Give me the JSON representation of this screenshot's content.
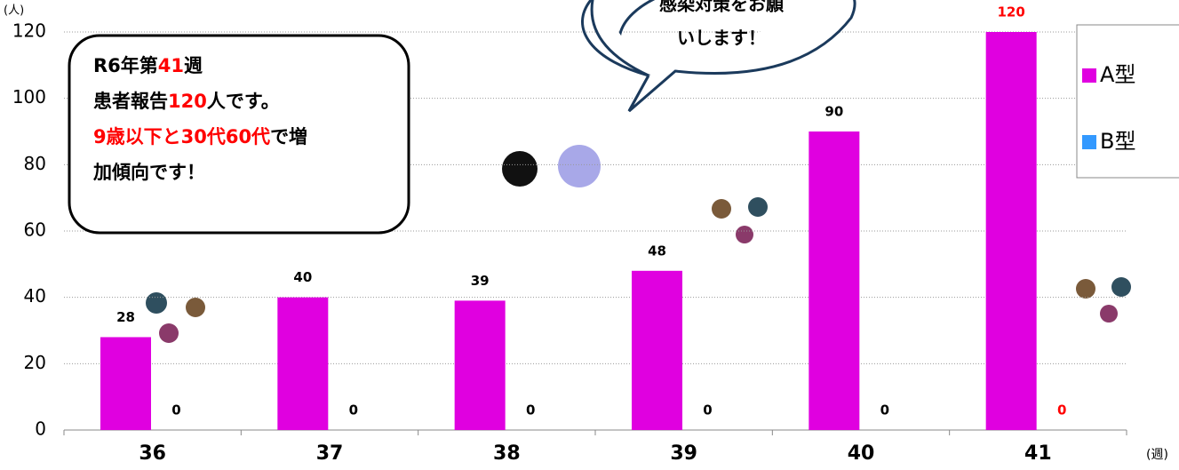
{
  "chart_data": {
    "type": "bar",
    "y_unit": "(人)",
    "x_unit": "(週)",
    "categories": [
      "36",
      "37",
      "38",
      "39",
      "40",
      "41"
    ],
    "series": [
      {
        "name": "A型",
        "color": "#e000e0",
        "values": [
          28,
          40,
          39,
          48,
          90,
          120
        ],
        "label_colors": [
          "#000000",
          "#000000",
          "#000000",
          "#000000",
          "#000000",
          "#ff0000"
        ]
      },
      {
        "name": "B型",
        "color": "#3399ff",
        "values": [
          0,
          0,
          0,
          0,
          0,
          0
        ],
        "label_colors": [
          "#000000",
          "#000000",
          "#000000",
          "#000000",
          "#000000",
          "#ff0000"
        ]
      }
    ],
    "ylim": [
      0,
      120
    ],
    "yticks": [
      0,
      20,
      40,
      60,
      80,
      100,
      120
    ],
    "grid": true,
    "legend": "right",
    "callout": [
      [
        {
          "text": "R6年第"
        },
        {
          "text": "41",
          "color": "#ff0000"
        },
        {
          "text": "週"
        }
      ],
      [
        {
          "text": "患者報告"
        },
        {
          "text": "120",
          "color": "#ff0000"
        },
        {
          "text": "人です。"
        }
      ],
      [
        {
          "text": "9歳以下と30代60代",
          "color": "#ff0000"
        },
        {
          "text": "で増"
        }
      ],
      [
        {
          "text": "加傾向です！"
        }
      ]
    ],
    "bubble": [
      "感染対策をお願",
      "いします！"
    ]
  }
}
